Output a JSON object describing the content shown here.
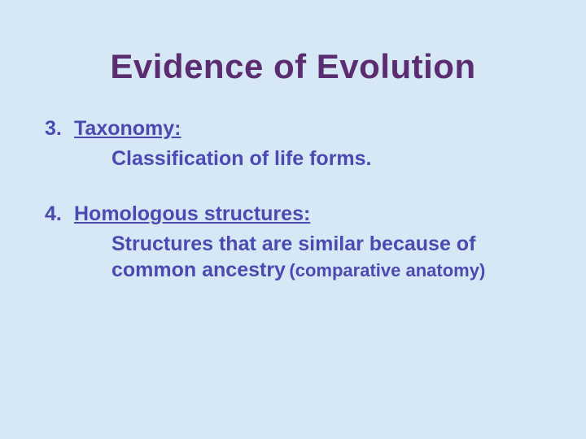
{
  "colors": {
    "background": "#d6e8f5",
    "title": "#5b2c6f",
    "body_text": "#4a4ab0"
  },
  "typography": {
    "title_fontsize": 42,
    "body_fontsize": 25,
    "paren_fontsize": 22,
    "font_family": "Arial",
    "font_weight": "bold"
  },
  "title": "Evidence of Evolution",
  "items": [
    {
      "number": "3.",
      "heading": "Taxonomy:",
      "description": "Classification of life forms.",
      "paren": ""
    },
    {
      "number": "4.",
      "heading": "Homologous structures:",
      "description": "Structures that are similar because of common ancestry",
      "paren": "(comparative anatomy)"
    }
  ]
}
